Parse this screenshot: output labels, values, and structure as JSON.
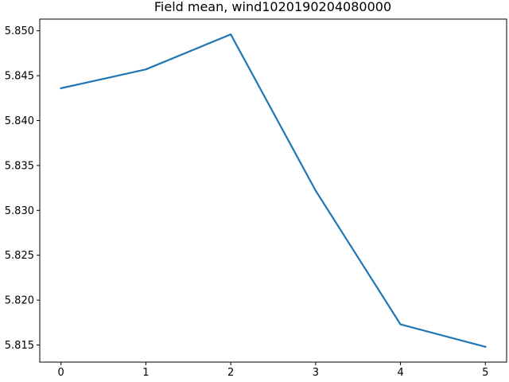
{
  "chart_data": {
    "type": "line",
    "title": "Field mean, wind1020190204080000",
    "xlabel": "",
    "ylabel": "",
    "x": [
      0,
      1,
      2,
      3,
      4,
      5
    ],
    "series": [
      {
        "values": [
          5.8436,
          5.8457,
          5.8496,
          5.8322,
          5.8173,
          5.8148
        ],
        "color": "#1f77b4"
      }
    ],
    "xticks": [
      0,
      1,
      2,
      3,
      4,
      5
    ],
    "xtick_labels": [
      "0",
      "1",
      "2",
      "3",
      "4",
      "5"
    ],
    "yticks": [
      5.815,
      5.82,
      5.825,
      5.83,
      5.835,
      5.84,
      5.845,
      5.85
    ],
    "ytick_labels": [
      "5.815",
      "5.820",
      "5.825",
      "5.830",
      "5.835",
      "5.840",
      "5.845",
      "5.850"
    ],
    "xlim": [
      -0.25,
      5.25
    ],
    "ylim": [
      5.8131,
      5.8513
    ],
    "grid": false,
    "legend": false
  }
}
